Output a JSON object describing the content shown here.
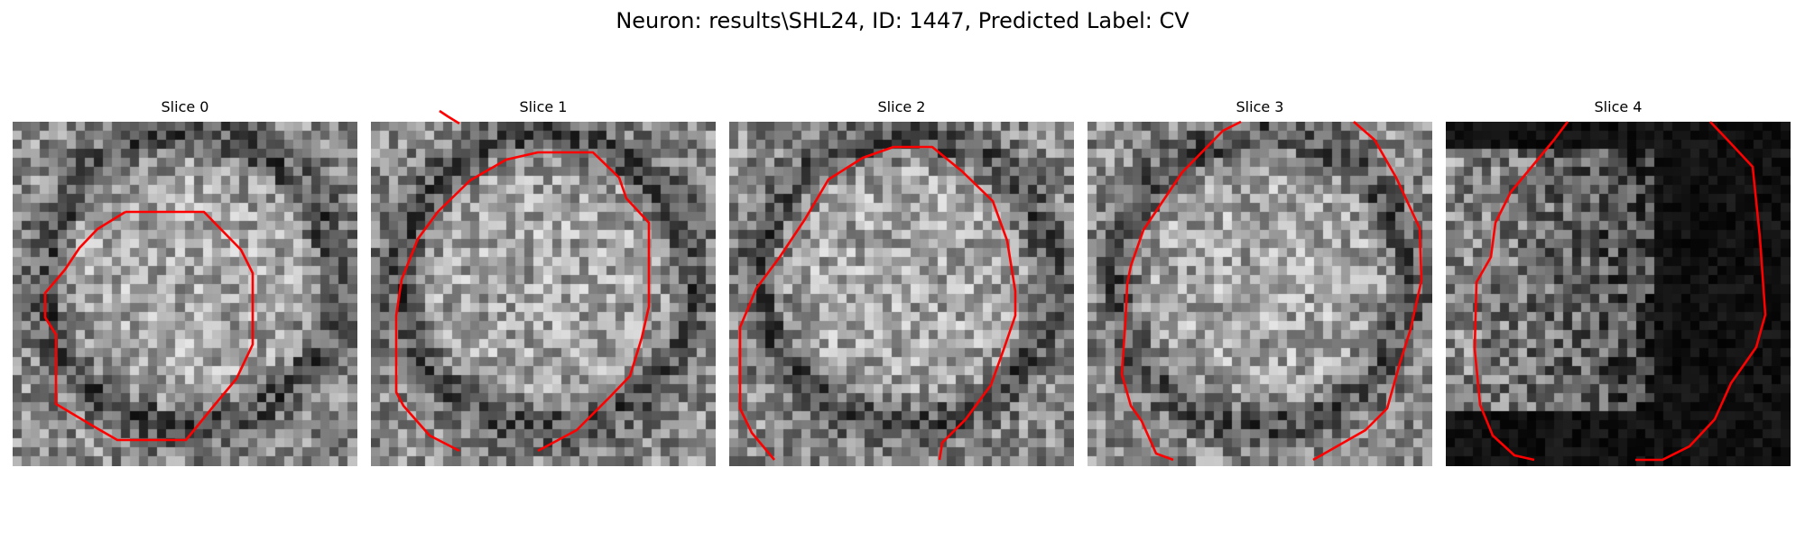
{
  "figure": {
    "title": "Neuron: results\\SHL24, ID: 1447, Predicted Label: CV"
  },
  "panels": [
    {
      "title": "Slice 0",
      "style": "gray",
      "seed": 11
    },
    {
      "title": "Slice 1",
      "style": "gray",
      "seed": 23
    },
    {
      "title": "Slice 2",
      "style": "gray",
      "seed": 37
    },
    {
      "title": "Slice 3",
      "style": "gray",
      "seed": 41
    },
    {
      "title": "Slice 4",
      "style": "dark",
      "seed": 59
    }
  ],
  "contour_color": "#ff0000"
}
